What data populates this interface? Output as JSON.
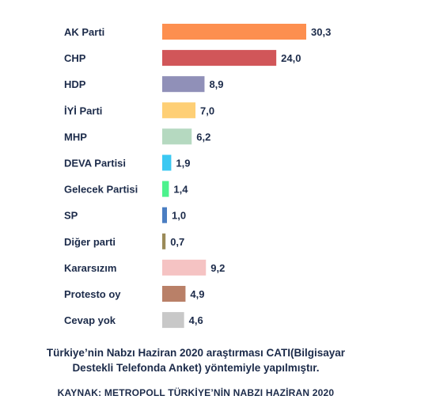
{
  "chart_data": {
    "type": "bar",
    "orientation": "horizontal",
    "categories": [
      "AK Parti",
      "CHP",
      "HDP",
      "İYİ Parti",
      "MHP",
      "DEVA Partisi",
      "Gelecek Partisi",
      "SP",
      "Diğer parti",
      "Kararsızım",
      "Protesto oy",
      "Cevap yok"
    ],
    "values": [
      30.3,
      24.0,
      8.9,
      7.0,
      6.2,
      1.9,
      1.4,
      1.0,
      0.7,
      9.2,
      4.9,
      4.6
    ],
    "value_labels": [
      "30,3",
      "24,0",
      "8,9",
      "7,0",
      "6,2",
      "1,9",
      "1,4",
      "1,0",
      "0,7",
      "9,2",
      "4,9",
      "4,6"
    ],
    "colors": [
      "#fd8f4f",
      "#d15659",
      "#9090b8",
      "#fecf75",
      "#b5d9c0",
      "#3bc8f2",
      "#4cf28d",
      "#4a7ec2",
      "#9b8a58",
      "#f5c3c3",
      "#b98068",
      "#c8c8c8"
    ],
    "xlim": [
      0,
      30.3
    ],
    "grid": false,
    "legend": "none"
  },
  "footer": {
    "note_line1": "Türkiye’nin Nabzı Haziran 2020 araştırması CATI(Bilgisayar",
    "note_line2": "Destekli Telefonda Anket) yöntemiyle yapılmıştır.",
    "source": "KAYNAK: METROPOLL TÜRKİYE’NİN NABZI HAZİRAN 2020"
  }
}
